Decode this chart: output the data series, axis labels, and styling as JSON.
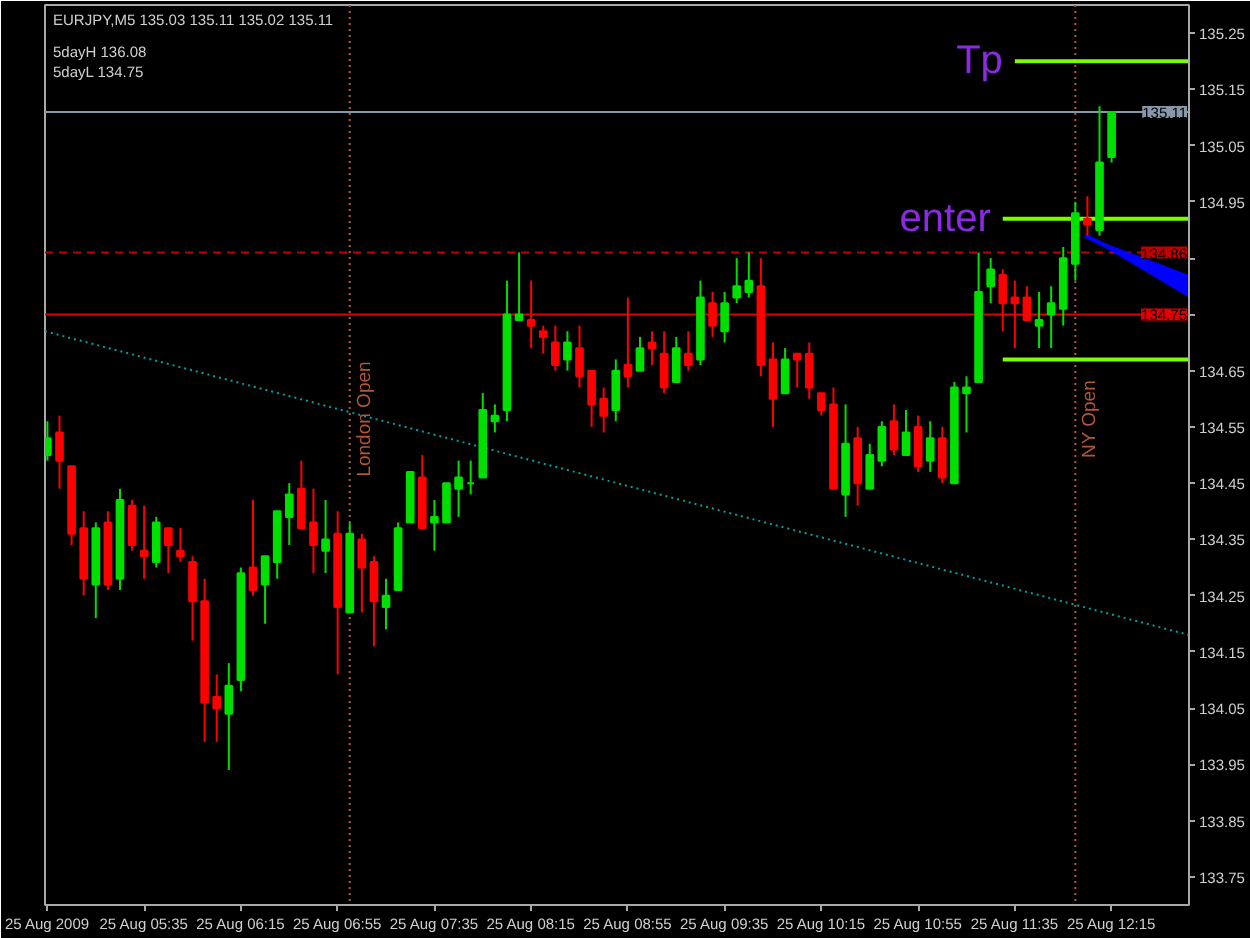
{
  "chart_data": {
    "type": "candlestick",
    "title": "EURJPY,M5 135.03 135.11 135.02 135.11",
    "annotations": [
      "5dayH 136.08",
      "5dayL 134.75",
      {
        "text": "Tp",
        "x": "2009-08-25T11:35",
        "y": 135.2
      },
      {
        "text": "enter",
        "x": "2009-08-25T11:30",
        "y": 134.92
      }
    ],
    "x": [
      "2009-08-25T04:55",
      "2009-08-25T05:00",
      "2009-08-25T05:05",
      "2009-08-25T05:10",
      "2009-08-25T05:15",
      "2009-08-25T05:20",
      "2009-08-25T05:25",
      "2009-08-25T05:30",
      "2009-08-25T05:35",
      "2009-08-25T05:40",
      "2009-08-25T05:45",
      "2009-08-25T05:50",
      "2009-08-25T05:55",
      "2009-08-25T06:00",
      "2009-08-25T06:05",
      "2009-08-25T06:10",
      "2009-08-25T06:15",
      "2009-08-25T06:20",
      "2009-08-25T06:25",
      "2009-08-25T06:30",
      "2009-08-25T06:35",
      "2009-08-25T06:40",
      "2009-08-25T06:45",
      "2009-08-25T06:50",
      "2009-08-25T06:55",
      "2009-08-25T07:00",
      "2009-08-25T07:05",
      "2009-08-25T07:10",
      "2009-08-25T07:15",
      "2009-08-25T07:20",
      "2009-08-25T07:25",
      "2009-08-25T07:30",
      "2009-08-25T07:35",
      "2009-08-25T07:40",
      "2009-08-25T07:45",
      "2009-08-25T07:50",
      "2009-08-25T07:55",
      "2009-08-25T08:00",
      "2009-08-25T08:05",
      "2009-08-25T08:10",
      "2009-08-25T08:15",
      "2009-08-25T08:20",
      "2009-08-25T08:25",
      "2009-08-25T08:30",
      "2009-08-25T08:35",
      "2009-08-25T08:40",
      "2009-08-25T08:45",
      "2009-08-25T08:50",
      "2009-08-25T08:55",
      "2009-08-25T09:00",
      "2009-08-25T09:05",
      "2009-08-25T09:10",
      "2009-08-25T09:15",
      "2009-08-25T09:20",
      "2009-08-25T09:25",
      "2009-08-25T09:30",
      "2009-08-25T09:35",
      "2009-08-25T09:40",
      "2009-08-25T09:45",
      "2009-08-25T09:50",
      "2009-08-25T09:55",
      "2009-08-25T10:00",
      "2009-08-25T10:05",
      "2009-08-25T10:10",
      "2009-08-25T10:15",
      "2009-08-25T10:20",
      "2009-08-25T10:25",
      "2009-08-25T10:30",
      "2009-08-25T10:35",
      "2009-08-25T10:40",
      "2009-08-25T10:45",
      "2009-08-25T10:50",
      "2009-08-25T10:55",
      "2009-08-25T11:00",
      "2009-08-25T11:05",
      "2009-08-25T11:10",
      "2009-08-25T11:15",
      "2009-08-25T11:20",
      "2009-08-25T11:25",
      "2009-08-25T11:30",
      "2009-08-25T11:35",
      "2009-08-25T11:40",
      "2009-08-25T11:45",
      "2009-08-25T11:50",
      "2009-08-25T11:55",
      "2009-08-25T12:00",
      "2009-08-25T12:05",
      "2009-08-25T12:10",
      "2009-08-25T12:15"
    ],
    "ohlc": [
      [
        134.5,
        134.56,
        134.49,
        134.53
      ],
      [
        134.54,
        134.57,
        134.44,
        134.49
      ],
      [
        134.48,
        134.48,
        134.34,
        134.36
      ],
      [
        134.37,
        134.4,
        134.25,
        134.28
      ],
      [
        134.27,
        134.38,
        134.21,
        134.37
      ],
      [
        134.38,
        134.4,
        134.26,
        134.27
      ],
      [
        134.28,
        134.44,
        134.26,
        134.42
      ],
      [
        134.41,
        134.42,
        134.33,
        134.34
      ],
      [
        134.33,
        134.41,
        134.28,
        134.32
      ],
      [
        134.31,
        134.39,
        134.3,
        134.38
      ],
      [
        134.37,
        134.37,
        134.29,
        134.34
      ],
      [
        134.33,
        134.37,
        134.31,
        134.32
      ],
      [
        134.31,
        134.32,
        134.17,
        134.24
      ],
      [
        134.24,
        134.28,
        133.99,
        134.06
      ],
      [
        134.07,
        134.11,
        133.99,
        134.05
      ],
      [
        134.04,
        134.13,
        133.94,
        134.09
      ],
      [
        134.1,
        134.3,
        134.08,
        134.29
      ],
      [
        134.3,
        134.42,
        134.25,
        134.26
      ],
      [
        134.27,
        134.32,
        134.2,
        134.32
      ],
      [
        134.31,
        134.4,
        134.28,
        134.4
      ],
      [
        134.39,
        134.45,
        134.34,
        134.43
      ],
      [
        134.44,
        134.49,
        134.37,
        134.37
      ],
      [
        134.38,
        134.44,
        134.29,
        134.34
      ],
      [
        134.33,
        134.42,
        134.29,
        134.35
      ],
      [
        134.36,
        134.4,
        134.11,
        134.23
      ],
      [
        134.22,
        134.38,
        134.22,
        134.36
      ],
      [
        134.35,
        134.36,
        134.22,
        134.3
      ],
      [
        134.31,
        134.32,
        134.16,
        134.24
      ],
      [
        134.23,
        134.28,
        134.19,
        134.25
      ],
      [
        134.26,
        134.38,
        134.26,
        134.37
      ],
      [
        134.38,
        134.47,
        134.38,
        134.47
      ],
      [
        134.46,
        134.5,
        134.37,
        134.37
      ],
      [
        134.38,
        134.42,
        134.33,
        134.39
      ],
      [
        134.38,
        134.45,
        134.38,
        134.45
      ],
      [
        134.44,
        134.49,
        134.39,
        134.46
      ],
      [
        134.45,
        134.49,
        134.43,
        134.45
      ],
      [
        134.46,
        134.61,
        134.46,
        134.58
      ],
      [
        134.56,
        134.59,
        134.54,
        134.57
      ],
      [
        134.58,
        134.81,
        134.56,
        134.75
      ],
      [
        134.74,
        134.86,
        134.74,
        134.75
      ],
      [
        134.74,
        134.81,
        134.69,
        134.73
      ],
      [
        134.72,
        134.73,
        134.68,
        134.71
      ],
      [
        134.7,
        134.73,
        134.65,
        134.66
      ],
      [
        134.67,
        134.72,
        134.65,
        134.7
      ],
      [
        134.69,
        134.73,
        134.62,
        134.64
      ],
      [
        134.65,
        134.65,
        134.55,
        134.59
      ],
      [
        134.6,
        134.62,
        134.54,
        134.57
      ],
      [
        134.58,
        134.67,
        134.56,
        134.65
      ],
      [
        134.66,
        134.78,
        134.62,
        134.64
      ],
      [
        134.65,
        134.71,
        134.65,
        134.69
      ],
      [
        134.7,
        134.72,
        134.66,
        134.69
      ],
      [
        134.68,
        134.72,
        134.61,
        134.62
      ],
      [
        134.63,
        134.71,
        134.63,
        134.69
      ],
      [
        134.68,
        134.72,
        134.65,
        134.66
      ],
      [
        134.67,
        134.81,
        134.66,
        134.78
      ],
      [
        134.77,
        134.79,
        134.71,
        134.73
      ],
      [
        134.72,
        134.79,
        134.7,
        134.77
      ],
      [
        134.78,
        134.85,
        134.77,
        134.8
      ],
      [
        134.79,
        134.86,
        134.78,
        134.81
      ],
      [
        134.8,
        134.85,
        134.64,
        134.66
      ],
      [
        134.67,
        134.7,
        134.55,
        134.6
      ],
      [
        134.61,
        134.69,
        134.61,
        134.67
      ],
      [
        134.68,
        134.68,
        134.62,
        134.67
      ],
      [
        134.68,
        134.7,
        134.6,
        134.62
      ],
      [
        134.61,
        134.61,
        134.57,
        134.58
      ],
      [
        134.59,
        134.62,
        134.44,
        134.44
      ],
      [
        134.43,
        134.59,
        134.39,
        134.52
      ],
      [
        134.53,
        134.55,
        134.41,
        134.45
      ],
      [
        134.44,
        134.52,
        134.44,
        134.5
      ],
      [
        134.49,
        134.56,
        134.48,
        134.55
      ],
      [
        134.56,
        134.59,
        134.5,
        134.51
      ],
      [
        134.5,
        134.58,
        134.5,
        134.54
      ],
      [
        134.55,
        134.57,
        134.47,
        134.48
      ],
      [
        134.49,
        134.56,
        134.47,
        134.53
      ],
      [
        134.53,
        134.55,
        134.45,
        134.46
      ],
      [
        134.45,
        134.63,
        134.45,
        134.62
      ],
      [
        134.61,
        134.64,
        134.54,
        134.62
      ],
      [
        134.63,
        134.86,
        134.63,
        134.79
      ],
      [
        134.8,
        134.85,
        134.77,
        134.83
      ],
      [
        134.82,
        134.83,
        134.72,
        134.77
      ],
      [
        134.78,
        134.81,
        134.69,
        134.77
      ],
      [
        134.78,
        134.8,
        134.74,
        134.74
      ],
      [
        134.73,
        134.79,
        134.69,
        134.74
      ],
      [
        134.75,
        134.8,
        134.69,
        134.77
      ],
      [
        134.76,
        134.87,
        134.73,
        134.85
      ],
      [
        134.84,
        134.95,
        134.81,
        134.93
      ],
      [
        134.92,
        134.96,
        134.89,
        134.91
      ],
      [
        134.9,
        135.12,
        134.89,
        135.02
      ],
      [
        135.03,
        135.11,
        135.02,
        135.11
      ]
    ],
    "colors": [
      "#00e000",
      "#ff0000",
      "#ff0000",
      "#ff0000",
      "#00e000",
      "#ff0000",
      "#00e000",
      "#ff0000",
      "#ff0000",
      "#00e000",
      "#ff0000",
      "#ff0000",
      "#ff0000",
      "#ff0000",
      "#ff0000",
      "#00e000",
      "#00e000",
      "#ff0000",
      "#00e000",
      "#00e000",
      "#00e000",
      "#ff0000",
      "#ff0000",
      "#00e000",
      "#ff0000",
      "#00e000",
      "#ff0000",
      "#ff0000",
      "#00e000",
      "#00e000",
      "#00e000",
      "#ff0000",
      "#00e000",
      "#00e000",
      "#00e000",
      "#00e000",
      "#00e000",
      "#00e000",
      "#00e000",
      "#00e000",
      "#ff0000",
      "#ff0000",
      "#ff0000",
      "#00e000",
      "#ff0000",
      "#ff0000",
      "#ff0000",
      "#00e000",
      "#ff0000",
      "#00e000",
      "#ff0000",
      "#ff0000",
      "#00e000",
      "#ff0000",
      "#00e000",
      "#ff0000",
      "#00e000",
      "#00e000",
      "#00e000",
      "#ff0000",
      "#ff0000",
      "#00e000",
      "#ff0000",
      "#ff0000",
      "#ff0000",
      "#ff0000",
      "#00e000",
      "#ff0000",
      "#00e000",
      "#00e000",
      "#ff0000",
      "#00e000",
      "#ff0000",
      "#00e000",
      "#ff0000",
      "#00e000",
      "#00e000",
      "#00e000",
      "#00e000",
      "#ff0000",
      "#ff0000",
      "#ff0000",
      "#00e000",
      "#00e000",
      "#00e000",
      "#00e000",
      "#ff0000",
      "#00e000",
      "#00e000"
    ],
    "series": [
      {
        "type": "line",
        "color": "#00a0a0",
        "line_style": "dotted",
        "x": [
          "2009-08-25T04:54",
          "2009-08-25T12:47"
        ],
        "values": [
          134.72,
          134.18
        ]
      },
      {
        "type": "line",
        "color": "#7cfc00",
        "x": [
          "2009-08-25T11:35",
          "2009-08-25T12:47"
        ],
        "values": [
          135.2,
          135.2
        ]
      },
      {
        "type": "line",
        "color": "#7cfc00",
        "x": [
          "2009-08-25T11:30",
          "2009-08-25T12:47"
        ],
        "values": [
          134.92,
          134.92
        ]
      },
      {
        "type": "line",
        "color": "#7cfc00",
        "x": [
          "2009-08-25T11:30",
          "2009-08-25T12:47"
        ],
        "values": [
          134.67,
          134.67
        ]
      },
      {
        "type": "line",
        "color": "#0000ff",
        "x": [
          "2009-08-25T12:04",
          "2009-08-25T12:47"
        ],
        "values": [
          134.89,
          134.8
        ],
        "lower": [
          134.89,
          134.78
        ],
        "upper": [
          134.89,
          134.82
        ]
      }
    ],
    "ref_lines": [
      {
        "axis": "y",
        "value": 135.11,
        "label": "135.11",
        "color": "#8898aa"
      },
      {
        "axis": "y",
        "value": 134.86,
        "label": "134.86",
        "color": "#c00000",
        "line_style": "dashed"
      },
      {
        "axis": "y",
        "value": 134.75,
        "label": "134.75",
        "color": "#e00000"
      },
      {
        "axis": "x",
        "value": "2009-08-25T07:00",
        "label": "London Open",
        "color": "#b4553a",
        "line_style": "dotted"
      },
      {
        "axis": "x",
        "value": "2009-08-25T12:00",
        "label": "NY Open",
        "color": "#b4553a",
        "line_style": "dotted"
      }
    ],
    "xlim": [
      "2009-08-25T04:54",
      "2009-08-25T12:47"
    ],
    "xticks": [
      {
        "value": "2009-08-25T04:55",
        "label": "25 Aug 2009"
      },
      {
        "value": "2009-08-25T05:35",
        "label": "25 Aug 05:35"
      },
      {
        "value": "2009-08-25T06:15",
        "label": "25 Aug 06:15"
      },
      {
        "value": "2009-08-25T06:55",
        "label": "25 Aug 06:55"
      },
      {
        "value": "2009-08-25T07:35",
        "label": "25 Aug 07:35"
      },
      {
        "value": "2009-08-25T08:15",
        "label": "25 Aug 08:15"
      },
      {
        "value": "2009-08-25T08:55",
        "label": "25 Aug 08:55"
      },
      {
        "value": "2009-08-25T09:35",
        "label": "25 Aug 09:35"
      },
      {
        "value": "2009-08-25T10:15",
        "label": "25 Aug 10:15"
      },
      {
        "value": "2009-08-25T10:55",
        "label": "25 Aug 10:55"
      },
      {
        "value": "2009-08-25T11:35",
        "label": "25 Aug 11:35"
      },
      {
        "value": "2009-08-25T12:15",
        "label": "25 Aug 12:15"
      }
    ],
    "ylim": [
      133.7,
      135.3
    ],
    "yticks": [
      135.25,
      135.15,
      135.05,
      134.95,
      {
        "value": 134.85,
        "label": null
      },
      {
        "value": 134.75,
        "label": null
      },
      134.65,
      134.55,
      134.45,
      134.35,
      134.25,
      134.15,
      134.05,
      133.95,
      133.85,
      133.75
    ]
  }
}
